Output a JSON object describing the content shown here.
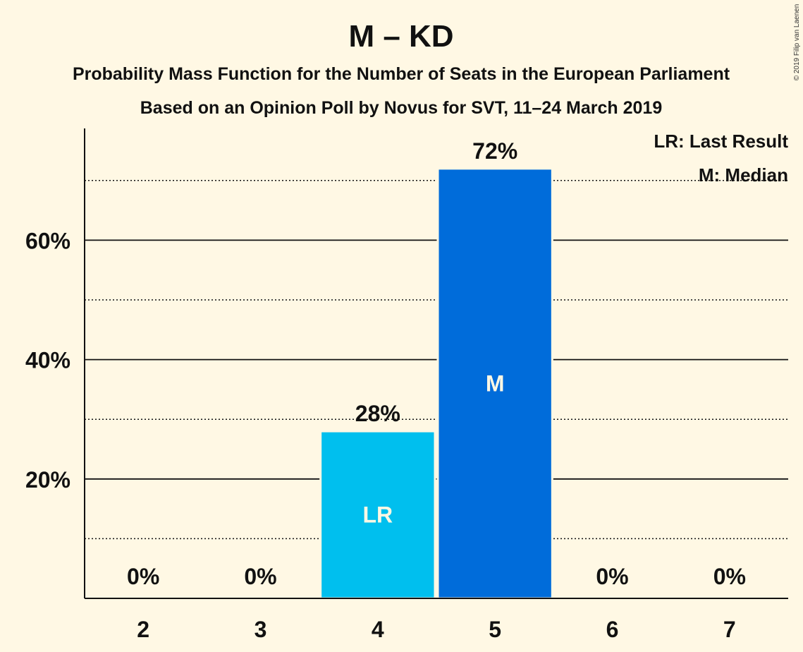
{
  "colors": {
    "background": "#fff8e4",
    "last_result_bar": "#00bfee",
    "median_bar": "#006cda",
    "text": "#111111"
  },
  "chart_data": {
    "type": "bar",
    "title": "M – KD",
    "subtitle_1": "Probability Mass Function for the Number of Seats in the European Parliament",
    "subtitle_2": "Based on an Opinion Poll by Novus for SVT, 11–24 March 2019",
    "copyright": "© 2019 Filip van Laenen",
    "categories": [
      "2",
      "3",
      "4",
      "5",
      "6",
      "7"
    ],
    "values": [
      0,
      0,
      28,
      72,
      0,
      0
    ],
    "value_labels": [
      "0%",
      "0%",
      "28%",
      "72%",
      "0%",
      "0%"
    ],
    "bar_markers": [
      "",
      "",
      "LR",
      "M",
      "",
      ""
    ],
    "ylim": [
      0,
      78
    ],
    "major_gridlines": [
      20,
      40,
      60
    ],
    "minor_gridlines": [
      10,
      30,
      50,
      70
    ],
    "yticks": [
      "20%",
      "40%",
      "60%"
    ],
    "legend": {
      "position": "top-right",
      "entries": [
        "LR: Last Result",
        "M: Median"
      ]
    },
    "grid": true
  }
}
